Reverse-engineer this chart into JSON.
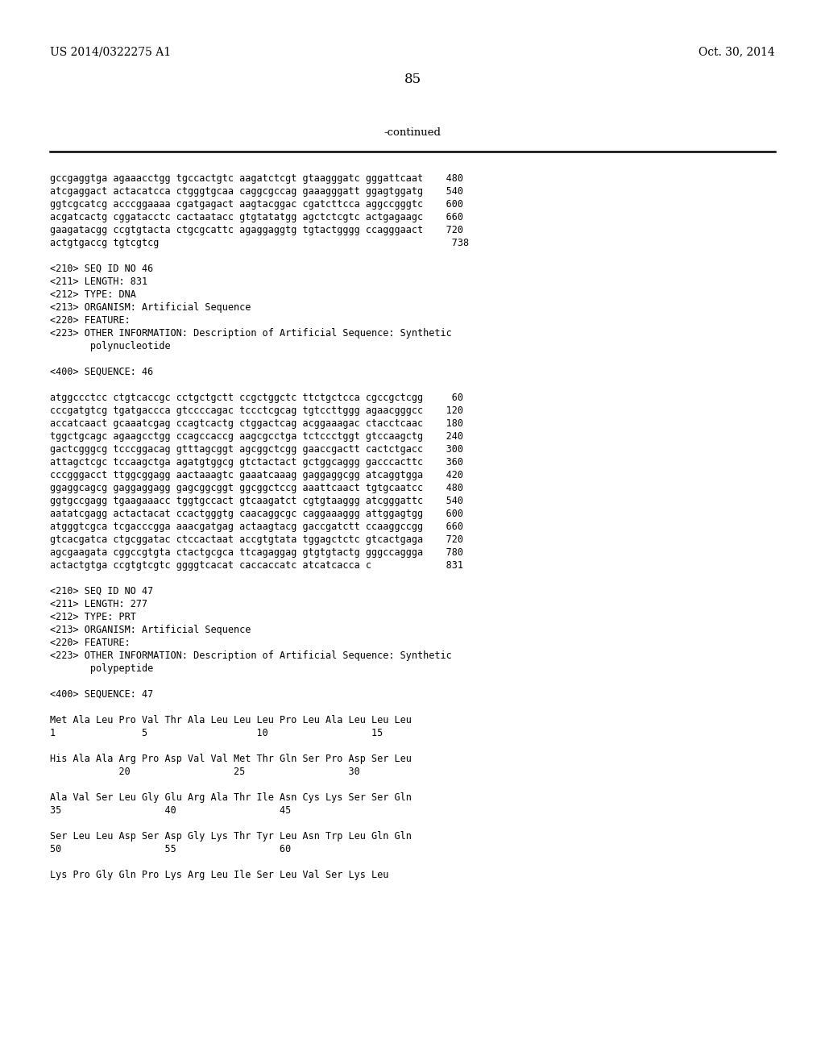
{
  "background_color": "#ffffff",
  "top_left_text": "US 2014/0322275 A1",
  "top_right_text": "Oct. 30, 2014",
  "page_number": "85",
  "continued_label": "-continued",
  "content_lines": [
    "gccgaggtga agaaacctgg tgccactgtc aagatctcgt gtaagggatc gggattcaat    480",
    "atcgaggact actacatcca ctgggtgcaa caggcgccag gaaagggatt ggagtggatg    540",
    "ggtcgcatcg acccggaaaa cgatgagact aagtacggac cgatcttcca aggccgggtc    600",
    "acgatcactg cggatacctc cactaatacc gtgtatatgg agctctcgtc actgagaagc    660",
    "gaagatacgg ccgtgtacta ctgcgcattc agaggaggtg tgtactgggg ccagggaact    720",
    "actgtgaccg tgtcgtcg                                                   738",
    "",
    "<210> SEQ ID NO 46",
    "<211> LENGTH: 831",
    "<212> TYPE: DNA",
    "<213> ORGANISM: Artificial Sequence",
    "<220> FEATURE:",
    "<223> OTHER INFORMATION: Description of Artificial Sequence: Synthetic",
    "       polynucleotide",
    "",
    "<400> SEQUENCE: 46",
    "",
    "atggccctcc ctgtcaccgc cctgctgctt ccgctggctc ttctgctcca cgccgctcgg     60",
    "cccgatgtcg tgatgaccca gtccccagac tccctcgcag tgtccttggg agaacgggcc    120",
    "accatcaact gcaaatcgag ccagtcactg ctggactcag acggaaagac ctacctcaac    180",
    "tggctgcagc agaagcctgg ccagccaccg aagcgcctga tctccctggt gtccaagctg    240",
    "gactcgggcg tcccggacag gtttagcggt agcggctcgg gaaccgactt cactctgacc    300",
    "attagctcgc tccaagctga agatgtggcg gtctactact gctggcaggg gacccacttc    360",
    "cccgggacct ttggcggagg aactaaagtc gaaatcaaag gaggaggcgg atcaggtgga    420",
    "ggaggcagcg gaggaggagg gagcggcggt ggcggctccg aaattcaact tgtgcaatcc    480",
    "ggtgccgagg tgaagaaacc tggtgccact gtcaagatct cgtgtaaggg atcgggattc    540",
    "aatatcgagg actactacat ccactgggtg caacaggcgc caggaaaggg attggagtgg    600",
    "atgggtcgca tcgacccgga aaacgatgag actaagtacg gaccgatctt ccaaggccgg    660",
    "gtcacgatca ctgcggatac ctccactaat accgtgtata tggagctctc gtcactgaga    720",
    "agcgaagata cggccgtgta ctactgcgca ttcagaggag gtgtgtactg gggccaggga    780",
    "actactgtga ccgtgtcgtc ggggtcacat caccaccatc atcatcacca c             831",
    "",
    "<210> SEQ ID NO 47",
    "<211> LENGTH: 277",
    "<212> TYPE: PRT",
    "<213> ORGANISM: Artificial Sequence",
    "<220> FEATURE:",
    "<223> OTHER INFORMATION: Description of Artificial Sequence: Synthetic",
    "       polypeptide",
    "",
    "<400> SEQUENCE: 47",
    "",
    "Met Ala Leu Pro Val Thr Ala Leu Leu Leu Pro Leu Ala Leu Leu Leu",
    "1               5                   10                  15",
    "",
    "His Ala Ala Arg Pro Asp Val Val Met Thr Gln Ser Pro Asp Ser Leu",
    "            20                  25                  30",
    "",
    "Ala Val Ser Leu Gly Glu Arg Ala Thr Ile Asn Cys Lys Ser Ser Gln",
    "35                  40                  45",
    "",
    "Ser Leu Leu Asp Ser Asp Gly Lys Thr Tyr Leu Asn Trp Leu Gln Gln",
    "50                  55                  60",
    "",
    "Lys Pro Gly Gln Pro Lys Arg Leu Ile Ser Leu Val Ser Lys Leu"
  ]
}
